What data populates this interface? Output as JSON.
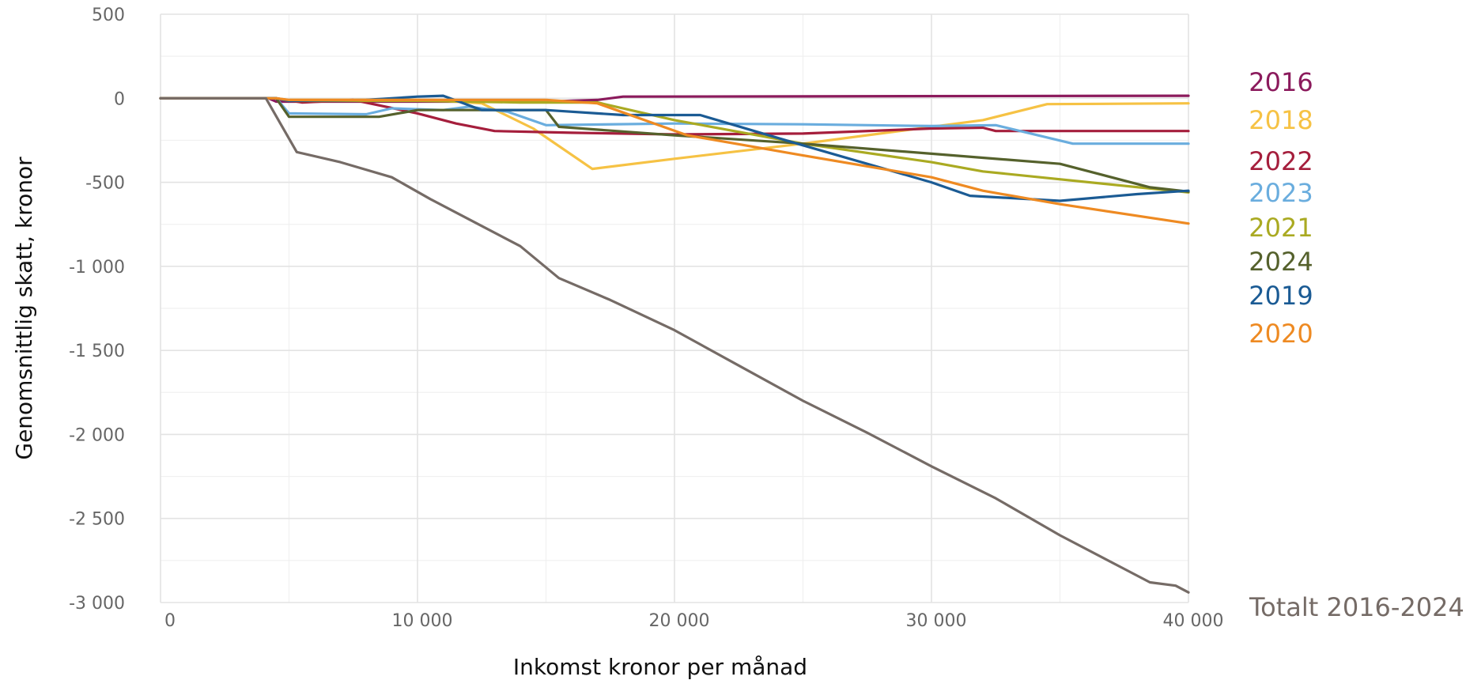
{
  "chart_data": {
    "type": "line",
    "title": "",
    "xlabel": "Inkomst kronor per månad",
    "ylabel": "Genomsnittlig skatt, kronor",
    "xlim": [
      0,
      40000
    ],
    "ylim": [
      -3000,
      500
    ],
    "grid": true,
    "legend": "labels at right end of lines",
    "x_ticks": [
      {
        "value": 0,
        "label": "0"
      },
      {
        "value": 10000,
        "label": "10 000"
      },
      {
        "value": 20000,
        "label": "20 000"
      },
      {
        "value": 30000,
        "label": "30 000"
      },
      {
        "value": 40000,
        "label": "40 000"
      }
    ],
    "y_ticks": [
      {
        "value": 500,
        "label": "500"
      },
      {
        "value": 0,
        "label": "0"
      },
      {
        "value": -500,
        "label": "-500"
      },
      {
        "value": -1000,
        "label": "-1 000"
      },
      {
        "value": -1500,
        "label": "-1 500"
      },
      {
        "value": -2000,
        "label": "-2 000"
      },
      {
        "value": -2500,
        "label": "-2 500"
      },
      {
        "value": -3000,
        "label": "-3 000"
      }
    ],
    "series": [
      {
        "name": "2016",
        "color": "#8B1A5C",
        "points": [
          [
            0,
            0
          ],
          [
            4200,
            0
          ],
          [
            4500,
            -20
          ],
          [
            9000,
            -20
          ],
          [
            15000,
            -20
          ],
          [
            17000,
            -10
          ],
          [
            18000,
            10
          ],
          [
            40000,
            15
          ]
        ]
      },
      {
        "name": "2018",
        "color": "#F6C244",
        "points": [
          [
            0,
            0
          ],
          [
            4500,
            0
          ],
          [
            5000,
            -10
          ],
          [
            10000,
            -10
          ],
          [
            11000,
            -15
          ],
          [
            12500,
            -30
          ],
          [
            14500,
            -180
          ],
          [
            16800,
            -420
          ],
          [
            20000,
            -360
          ],
          [
            25000,
            -270
          ],
          [
            30000,
            -170
          ],
          [
            32000,
            -130
          ],
          [
            34500,
            -35
          ],
          [
            40000,
            -30
          ]
        ]
      },
      {
        "name": "2022",
        "color": "#A51E3C",
        "points": [
          [
            0,
            0
          ],
          [
            4500,
            0
          ],
          [
            5500,
            -25
          ],
          [
            7500,
            -10
          ],
          [
            10000,
            -90
          ],
          [
            11500,
            -150
          ],
          [
            13000,
            -195
          ],
          [
            16000,
            -205
          ],
          [
            20000,
            -215
          ],
          [
            25000,
            -210
          ],
          [
            30000,
            -180
          ],
          [
            32000,
            -175
          ],
          [
            32500,
            -195
          ],
          [
            40000,
            -195
          ]
        ]
      },
      {
        "name": "2023",
        "color": "#6AADDE",
        "points": [
          [
            0,
            0
          ],
          [
            4500,
            0
          ],
          [
            5000,
            -90
          ],
          [
            8000,
            -95
          ],
          [
            9000,
            -60
          ],
          [
            11000,
            -70
          ],
          [
            12000,
            -50
          ],
          [
            13500,
            -80
          ],
          [
            15000,
            -160
          ],
          [
            20000,
            -150
          ],
          [
            25000,
            -155
          ],
          [
            30000,
            -165
          ],
          [
            32500,
            -160
          ],
          [
            35500,
            -270
          ],
          [
            40000,
            -270
          ]
        ]
      },
      {
        "name": "2021",
        "color": "#AAAA22",
        "points": [
          [
            0,
            0
          ],
          [
            4500,
            0
          ],
          [
            5000,
            -15
          ],
          [
            10000,
            -15
          ],
          [
            12000,
            -20
          ],
          [
            14000,
            -25
          ],
          [
            17000,
            -25
          ],
          [
            20000,
            -130
          ],
          [
            25000,
            -270
          ],
          [
            30000,
            -380
          ],
          [
            32000,
            -435
          ],
          [
            40000,
            -560
          ]
        ]
      },
      {
        "name": "2024",
        "color": "#55612C",
        "points": [
          [
            0,
            0
          ],
          [
            4500,
            0
          ],
          [
            5000,
            -110
          ],
          [
            8500,
            -110
          ],
          [
            10000,
            -70
          ],
          [
            15000,
            -70
          ],
          [
            15500,
            -170
          ],
          [
            20000,
            -220
          ],
          [
            25000,
            -270
          ],
          [
            30000,
            -330
          ],
          [
            35000,
            -390
          ],
          [
            38500,
            -530
          ],
          [
            40000,
            -555
          ]
        ]
      },
      {
        "name": "2019",
        "color": "#1B5B94",
        "points": [
          [
            0,
            0
          ],
          [
            4500,
            0
          ],
          [
            5000,
            -15
          ],
          [
            8000,
            -10
          ],
          [
            10000,
            10
          ],
          [
            11000,
            15
          ],
          [
            12500,
            -70
          ],
          [
            15000,
            -70
          ],
          [
            18000,
            -100
          ],
          [
            21000,
            -100
          ],
          [
            25000,
            -280
          ],
          [
            30000,
            -500
          ],
          [
            31500,
            -580
          ],
          [
            35000,
            -610
          ],
          [
            38000,
            -570
          ],
          [
            40000,
            -550
          ]
        ]
      },
      {
        "name": "2020",
        "color": "#EE8A22",
        "points": [
          [
            0,
            0
          ],
          [
            4500,
            0
          ],
          [
            5000,
            -10
          ],
          [
            15000,
            -10
          ],
          [
            17000,
            -30
          ],
          [
            20500,
            -220
          ],
          [
            25000,
            -340
          ],
          [
            30000,
            -470
          ],
          [
            32000,
            -550
          ],
          [
            35000,
            -630
          ],
          [
            40000,
            -745
          ]
        ]
      },
      {
        "name": "Totalt 2016-2024",
        "color": "#756B66",
        "points": [
          [
            0,
            0
          ],
          [
            4100,
            0
          ],
          [
            5300,
            -320
          ],
          [
            7000,
            -380
          ],
          [
            9000,
            -470
          ],
          [
            10500,
            -600
          ],
          [
            12000,
            -720
          ],
          [
            14000,
            -880
          ],
          [
            15500,
            -1070
          ],
          [
            17500,
            -1200
          ],
          [
            20000,
            -1380
          ],
          [
            22500,
            -1590
          ],
          [
            25000,
            -1800
          ],
          [
            27500,
            -1990
          ],
          [
            30000,
            -2190
          ],
          [
            32500,
            -2380
          ],
          [
            35000,
            -2600
          ],
          [
            37500,
            -2800
          ],
          [
            38500,
            -2880
          ],
          [
            39500,
            -2900
          ],
          [
            40000,
            -2940
          ]
        ]
      }
    ]
  }
}
